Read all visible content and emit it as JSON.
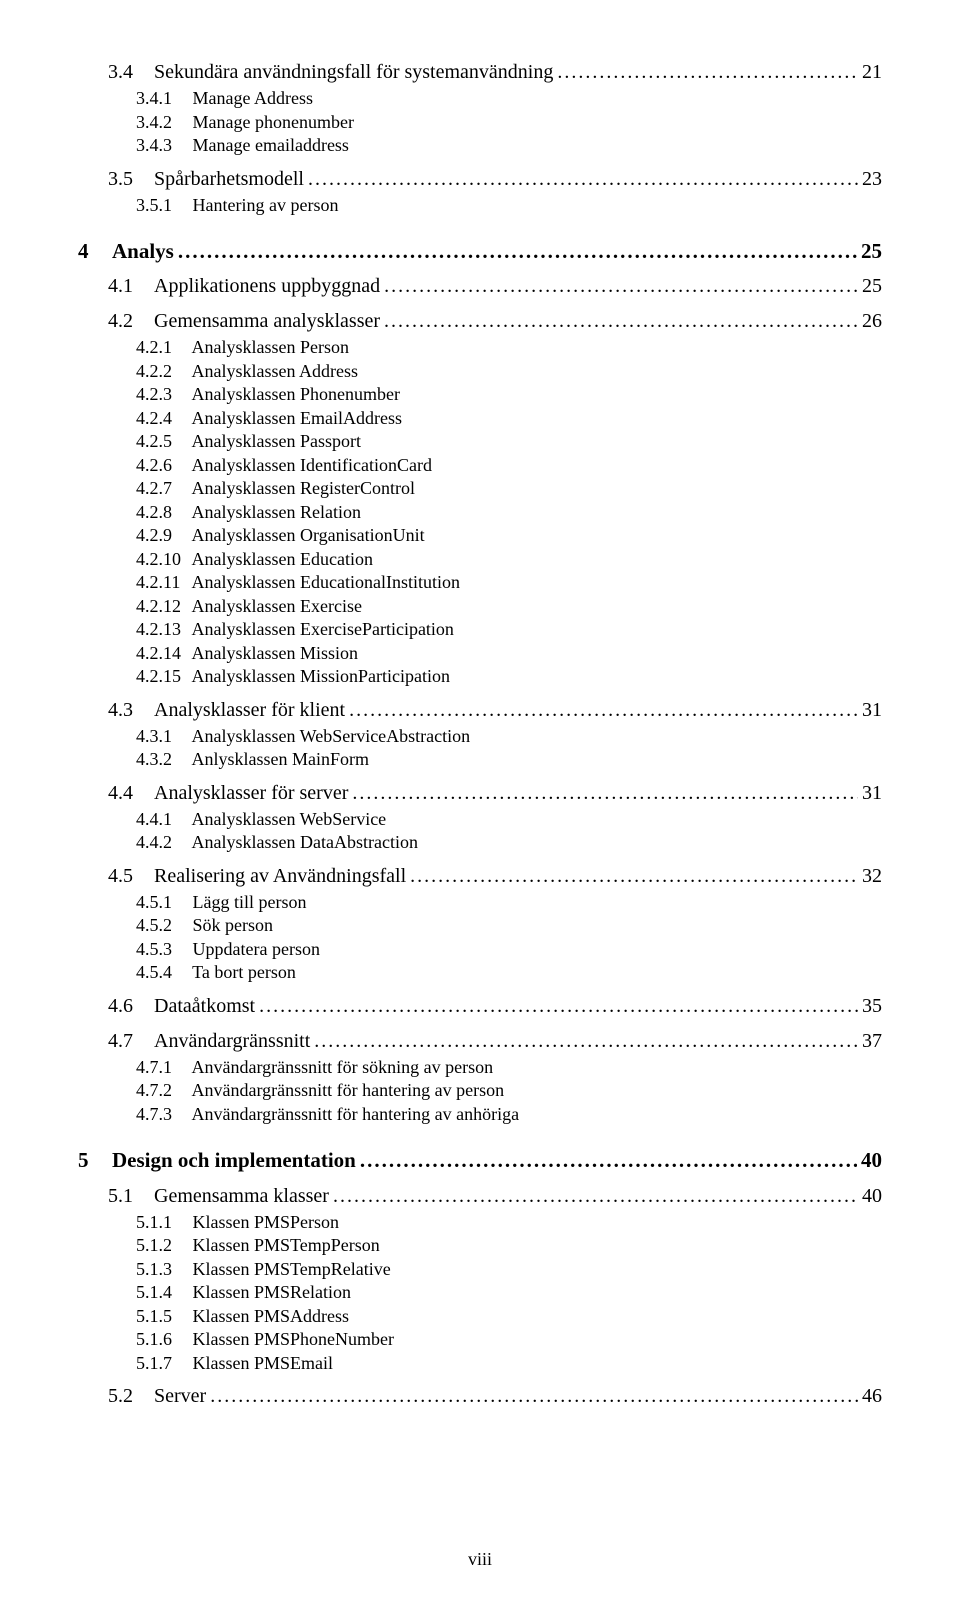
{
  "footer": "viii",
  "sections": [
    {
      "type": "l2",
      "num": "3.4",
      "title": "Sekundära användningsfall för systemanvändning",
      "page": "21",
      "subs": [
        {
          "n": "3.4.1",
          "t": "Manage Address"
        },
        {
          "n": "3.4.2",
          "t": "Manage phonenumber"
        },
        {
          "n": "3.4.3",
          "t": "Manage emailaddress"
        }
      ]
    },
    {
      "type": "l2",
      "num": "3.5",
      "title": "Spårbarhetsmodell",
      "page": "23",
      "subs": [
        {
          "n": "3.5.1",
          "t": "Hantering av person"
        }
      ]
    },
    {
      "type": "l1",
      "num": "4",
      "title": "Analys",
      "page": "25"
    },
    {
      "type": "l2",
      "num": "4.1",
      "title": "Applikationens uppbyggnad",
      "page": "25"
    },
    {
      "type": "l2",
      "num": "4.2",
      "title": "Gemensamma analysklasser",
      "page": "26",
      "subs": [
        {
          "n": "4.2.1",
          "t": "Analysklassen Person"
        },
        {
          "n": "4.2.2",
          "t": "Analysklassen Address"
        },
        {
          "n": "4.2.3",
          "t": "Analysklassen Phonenumber"
        },
        {
          "n": "4.2.4",
          "t": "Analysklassen EmailAddress"
        },
        {
          "n": "4.2.5",
          "t": "Analysklassen Passport"
        },
        {
          "n": "4.2.6",
          "t": "Analysklassen IdentificationCard"
        },
        {
          "n": "4.2.7",
          "t": "Analysklassen RegisterControl"
        },
        {
          "n": "4.2.8",
          "t": "Analysklassen Relation"
        },
        {
          "n": "4.2.9",
          "t": "Analysklassen OrganisationUnit"
        },
        {
          "n": "4.2.10",
          "t": "Analysklassen Education"
        },
        {
          "n": "4.2.11",
          "t": "Analysklassen EducationalInstitution"
        },
        {
          "n": "4.2.12",
          "t": "Analysklassen Exercise"
        },
        {
          "n": "4.2.13",
          "t": "Analysklassen ExerciseParticipation"
        },
        {
          "n": "4.2.14",
          "t": "Analysklassen Mission"
        },
        {
          "n": "4.2.15",
          "t": "Analysklassen MissionParticipation"
        }
      ]
    },
    {
      "type": "l2",
      "num": "4.3",
      "title": "Analysklasser för klient",
      "page": "31",
      "subs": [
        {
          "n": "4.3.1",
          "t": "Analysklassen WebServiceAbstraction"
        },
        {
          "n": "4.3.2",
          "t": "Anlysklassen MainForm"
        }
      ]
    },
    {
      "type": "l2",
      "num": "4.4",
      "title": "Analysklasser för server",
      "page": "31",
      "subs": [
        {
          "n": "4.4.1",
          "t": "Analysklassen WebService"
        },
        {
          "n": "4.4.2",
          "t": "Analysklassen DataAbstraction"
        }
      ]
    },
    {
      "type": "l2",
      "num": "4.5",
      "title": "Realisering av Användningsfall",
      "page": "32",
      "subs": [
        {
          "n": "4.5.1",
          "t": "Lägg till person"
        },
        {
          "n": "4.5.2",
          "t": "Sök person"
        },
        {
          "n": "4.5.3",
          "t": "Uppdatera person"
        },
        {
          "n": "4.5.4",
          "t": "Ta bort person"
        }
      ]
    },
    {
      "type": "l2",
      "num": "4.6",
      "title": "Dataåtkomst",
      "page": "35"
    },
    {
      "type": "l2",
      "num": "4.7",
      "title": "Användargränssnitt",
      "page": "37",
      "subs": [
        {
          "n": "4.7.1",
          "t": "Användargränssnitt för sökning av person"
        },
        {
          "n": "4.7.2",
          "t": "Användargränssnitt för hantering av person"
        },
        {
          "n": "4.7.3",
          "t": "Användargränssnitt för hantering av anhöriga"
        }
      ]
    },
    {
      "type": "l1",
      "num": "5",
      "title": "Design och implementation",
      "page": "40"
    },
    {
      "type": "l2",
      "num": "5.1",
      "title": "Gemensamma klasser",
      "page": "40",
      "subs": [
        {
          "n": "5.1.1",
          "t": "Klassen PMSPerson"
        },
        {
          "n": "5.1.2",
          "t": "Klassen PMSTempPerson"
        },
        {
          "n": "5.1.3",
          "t": "Klassen PMSTempRelative"
        },
        {
          "n": "5.1.4",
          "t": "Klassen PMSRelation"
        },
        {
          "n": "5.1.5",
          "t": "Klassen PMSAddress"
        },
        {
          "n": "5.1.6",
          "t": "Klassen PMSPhoneNumber"
        },
        {
          "n": "5.1.7",
          "t": "Klassen PMSEmail"
        }
      ]
    },
    {
      "type": "l2",
      "num": "5.2",
      "title": "Server",
      "page": "46"
    }
  ]
}
